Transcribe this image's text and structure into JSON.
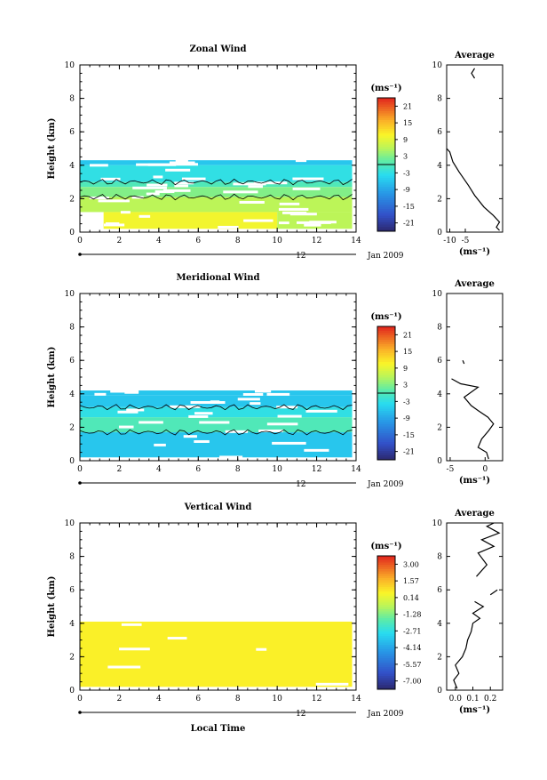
{
  "figure": {
    "date_label": "Jan 2009",
    "date_day": "12",
    "xlabel": "Local Time"
  },
  "chart_data": [
    {
      "type": "heatmap",
      "title": "Zonal Wind",
      "ylabel": "Height (km)",
      "x_ticks": [
        "0",
        "2",
        "4",
        "6",
        "8",
        "10",
        "12",
        "14"
      ],
      "y_ticks": [
        "0",
        "2",
        "4",
        "6",
        "8",
        "10"
      ],
      "xlim": [
        0,
        14
      ],
      "ylim": [
        0,
        10
      ],
      "colorbar": {
        "unit": "(ms⁻¹)",
        "labels": [
          "21",
          "15",
          "9",
          "3",
          "-3",
          "-9",
          "-15",
          "-21"
        ],
        "range": [
          -24,
          24
        ],
        "zero_line": 0
      },
      "layers": [
        {
          "y0": 4.0,
          "y1": 4.3,
          "x0": 0,
          "x1": 13.8,
          "v": -6
        },
        {
          "y0": 3.0,
          "y1": 4.0,
          "x0": 0,
          "x1": 13.8,
          "v": -3
        },
        {
          "y0": 2.7,
          "y1": 3.0,
          "x0": 0,
          "x1": 13.8,
          "v": 0
        },
        {
          "y0": 2.1,
          "y1": 2.7,
          "x0": 0,
          "x1": 13.8,
          "v": 3
        },
        {
          "y0": 1.2,
          "y1": 2.1,
          "x0": 0,
          "x1": 13.8,
          "v": 6
        },
        {
          "y0": 0.2,
          "y1": 1.2,
          "x0": 1.2,
          "x1": 10,
          "v": 10
        },
        {
          "y0": 0.2,
          "y1": 1.2,
          "x0": 10,
          "x1": 13.8,
          "v": 6
        }
      ],
      "profile": {
        "title": "Average",
        "x_ticks": [
          "-10",
          "-5"
        ],
        "xlim": [
          -11,
          7
        ],
        "unit": "(ms⁻¹)",
        "points": [
          [
            6,
            0.1
          ],
          [
            5,
            0.3
          ],
          [
            6,
            0.6
          ],
          [
            4,
            1.0
          ],
          [
            1,
            1.5
          ],
          [
            -2,
            2.2
          ],
          [
            -4,
            2.8
          ],
          [
            -7,
            3.6
          ],
          [
            -9,
            4.2
          ],
          [
            -10,
            4.8
          ],
          [
            -11,
            5.0
          ]
        ],
        "segments": [
          [
            [
              -2,
              9.2
            ],
            [
              -3,
              9.5
            ],
            [
              -2,
              9.8
            ]
          ]
        ]
      }
    },
    {
      "type": "heatmap",
      "title": "Meridional Wind",
      "ylabel": "Height (km)",
      "x_ticks": [
        "0",
        "2",
        "4",
        "6",
        "8",
        "10",
        "12",
        "14"
      ],
      "y_ticks": [
        "0",
        "2",
        "4",
        "6",
        "8",
        "10"
      ],
      "xlim": [
        0,
        14
      ],
      "ylim": [
        0,
        10
      ],
      "colorbar": {
        "unit": "(ms⁻¹)",
        "labels": [
          "21",
          "15",
          "9",
          "3",
          "-3",
          "-9",
          "-15",
          "-21"
        ],
        "range": [
          -24,
          24
        ],
        "zero_line": 0
      },
      "layers": [
        {
          "y0": 3.9,
          "y1": 4.2,
          "x0": 0,
          "x1": 13.8,
          "v": -6
        },
        {
          "y0": 3.2,
          "y1": 3.9,
          "x0": 0,
          "x1": 13.8,
          "v": -6
        },
        {
          "y0": 2.6,
          "y1": 3.2,
          "x0": 0,
          "x1": 13.8,
          "v": -3
        },
        {
          "y0": 1.7,
          "y1": 2.6,
          "x0": 0,
          "x1": 13.8,
          "v": 0
        },
        {
          "y0": 0.2,
          "y1": 1.7,
          "x0": 0,
          "x1": 13.8,
          "v": -6
        }
      ],
      "profile": {
        "title": "Average",
        "x_ticks": [
          "-5",
          "0"
        ],
        "xlim": [
          -5.5,
          2.5
        ],
        "unit": "(ms⁻¹)",
        "points": [
          [
            0.5,
            0.1
          ],
          [
            0.2,
            0.5
          ],
          [
            -1,
            0.8
          ],
          [
            -0.5,
            1.3
          ],
          [
            0.5,
            1.8
          ],
          [
            1.2,
            2.2
          ],
          [
            0.4,
            2.6
          ],
          [
            -1,
            3.0
          ],
          [
            -2,
            3.3
          ],
          [
            -3,
            3.8
          ],
          [
            -1,
            4.4
          ],
          [
            -3.5,
            4.6
          ],
          [
            -4.8,
            4.9
          ]
        ],
        "segments": [
          [
            [
              -3,
              5.8
            ],
            [
              -3.2,
              6.0
            ]
          ]
        ]
      }
    },
    {
      "type": "heatmap",
      "title": "Vertical Wind",
      "ylabel": "Height (km)",
      "x_ticks": [
        "0",
        "2",
        "4",
        "6",
        "8",
        "10",
        "12",
        "14"
      ],
      "y_ticks": [
        "0",
        "2",
        "4",
        "6",
        "8",
        "10"
      ],
      "xlim": [
        0,
        14
      ],
      "ylim": [
        0,
        10
      ],
      "colorbar": {
        "unit": "(ms⁻¹)",
        "labels": [
          "3.00",
          "1.57",
          "0.14",
          "-1.28",
          "-2.71",
          "-4.14",
          "-5.57",
          "-7.00"
        ],
        "range": [
          -7.7,
          3.7
        ],
        "zero_line": null
      },
      "layers": [
        {
          "y0": 0.2,
          "y1": 4.1,
          "x0": 0,
          "x1": 13.8,
          "v": 0.6
        }
      ],
      "profile": {
        "title": "Average",
        "x_ticks": [
          "0.0",
          "0.1",
          "0.2"
        ],
        "xlim": [
          -0.05,
          0.27
        ],
        "unit": "(ms⁻¹)",
        "points": [
          [
            0.01,
            0.1
          ],
          [
            -0.01,
            0.6
          ],
          [
            0.02,
            1.0
          ],
          [
            0.0,
            1.5
          ],
          [
            0.04,
            2.0
          ],
          [
            0.06,
            2.5
          ],
          [
            0.07,
            3.0
          ],
          [
            0.09,
            3.5
          ],
          [
            0.1,
            4.0
          ],
          [
            0.14,
            4.3
          ],
          [
            0.1,
            4.6
          ],
          [
            0.16,
            5.0
          ],
          [
            0.11,
            5.3
          ]
        ],
        "segments": [
          [
            [
              0.2,
              5.7
            ],
            [
              0.24,
              6.0
            ]
          ],
          [
            [
              0.12,
              6.8
            ],
            [
              0.18,
              7.5
            ],
            [
              0.13,
              8.2
            ],
            [
              0.22,
              8.6
            ],
            [
              0.15,
              9.0
            ],
            [
              0.25,
              9.4
            ],
            [
              0.18,
              9.8
            ],
            [
              0.22,
              10.0
            ]
          ]
        ]
      }
    }
  ]
}
